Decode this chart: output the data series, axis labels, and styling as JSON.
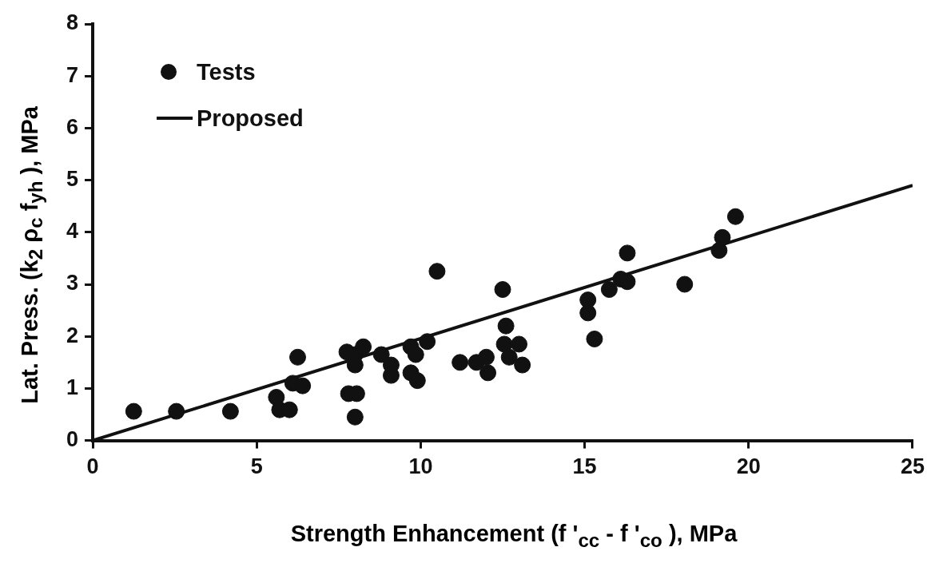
{
  "chart_data": {
    "type": "scatter",
    "xlabel": "Strength Enhancement (f '$_{cc}$ - f '$_{co}$ ), MPa",
    "ylabel": "Lat. Press. (k$_{2}$ ρ$_{c}$ f$_{yh}$ ), MPa",
    "xlim": [
      0,
      25
    ],
    "xticks": [
      0,
      5,
      10,
      15,
      20,
      25
    ],
    "ylim": [
      0,
      8
    ],
    "yticks": [
      0,
      1,
      2,
      3,
      4,
      5,
      6,
      7,
      8
    ],
    "grid": false,
    "legend": "top left",
    "marker": "circle",
    "series": [
      {
        "name": "Tests",
        "color": "#111111",
        "x": [
          1.25,
          2.55,
          4.2,
          5.6,
          5.7,
          6.0,
          6.25,
          6.1,
          6.4,
          7.75,
          8.0,
          8.0,
          7.8,
          8.05,
          8.0,
          8.25,
          8.8,
          9.1,
          9.1,
          9.7,
          9.85,
          9.7,
          9.9,
          10.2,
          10.5,
          11.2,
          11.7,
          12.0,
          12.05,
          12.5,
          12.6,
          12.55,
          12.7,
          13.0,
          13.1,
          15.1,
          15.1,
          15.3,
          15.75,
          16.1,
          16.3,
          16.3,
          18.05,
          19.1,
          19.2,
          19.6
        ],
        "values": [
          0.56,
          0.56,
          0.56,
          0.83,
          0.59,
          0.59,
          1.6,
          1.1,
          1.05,
          1.7,
          1.65,
          1.45,
          0.9,
          0.9,
          0.45,
          1.8,
          1.65,
          1.45,
          1.25,
          1.8,
          1.65,
          1.3,
          1.15,
          1.9,
          3.25,
          1.5,
          1.5,
          1.6,
          1.3,
          2.9,
          2.2,
          1.85,
          1.6,
          1.85,
          1.45,
          2.7,
          2.45,
          1.95,
          2.9,
          3.1,
          3.05,
          3.6,
          3.0,
          3.65,
          3.9,
          4.3
        ]
      },
      {
        "name": "Proposed",
        "type": "line",
        "color": "#111111",
        "marker": "none",
        "line_style": "solid",
        "x": [
          0,
          25
        ],
        "values": [
          0,
          4.9
        ]
      }
    ]
  }
}
